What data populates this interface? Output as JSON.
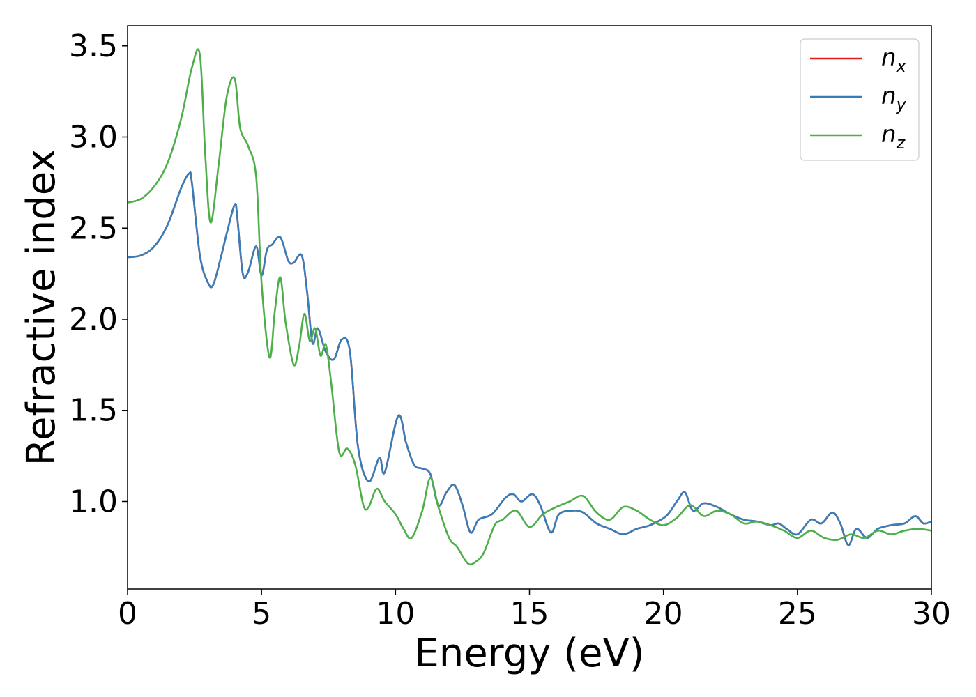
{
  "chart_data": {
    "type": "line",
    "xlabel": "Energy (eV)",
    "ylabel": "Refractive index",
    "xlim": [
      0,
      30
    ],
    "ylim": [
      0.52,
      3.61
    ],
    "xticks": [
      0,
      5,
      10,
      15,
      20,
      25,
      30
    ],
    "xtick_labels": [
      "0",
      "5",
      "10",
      "15",
      "20",
      "25",
      "30"
    ],
    "yticks": [
      1.0,
      1.5,
      2.0,
      2.5,
      3.0,
      3.5
    ],
    "ytick_labels": [
      "1.0",
      "1.5",
      "2.0",
      "2.5",
      "3.0",
      "3.5"
    ],
    "grid": false,
    "legend_position": "top-right",
    "series": [
      {
        "name": "n_x",
        "legend_main": "n",
        "legend_sub": "x",
        "color": "#e41a1c",
        "x": [
          0,
          0.5,
          1.0,
          1.5,
          2.0,
          2.3,
          2.4,
          2.7,
          3.0,
          3.2,
          3.5,
          3.7,
          4.0,
          4.1,
          4.3,
          4.5,
          4.8,
          5.0,
          5.2,
          5.4,
          5.7,
          6.0,
          6.2,
          6.5,
          6.7,
          6.9,
          7.1,
          7.4,
          7.7,
          8.0,
          8.3,
          8.6,
          9.0,
          9.4,
          9.6,
          10.1,
          10.4,
          10.7,
          11.0,
          11.3,
          11.6,
          11.9,
          12.2,
          12.5,
          12.8,
          13.1,
          13.6,
          14.1,
          14.4,
          14.7,
          15.1,
          15.4,
          15.8,
          16.1,
          16.6,
          17.0,
          17.5,
          18.0,
          18.5,
          19.0,
          19.5,
          20.1,
          20.5,
          20.8,
          21.1,
          21.5,
          22.0,
          22.5,
          23.0,
          23.5,
          24.0,
          24.3,
          24.6,
          25.0,
          25.5,
          25.9,
          26.3,
          26.6,
          26.9,
          27.2,
          27.6,
          28.0,
          28.5,
          29.0,
          29.4,
          29.7,
          30.0
        ],
        "y": [
          2.34,
          2.35,
          2.4,
          2.52,
          2.72,
          2.8,
          2.75,
          2.35,
          2.2,
          2.19,
          2.35,
          2.47,
          2.63,
          2.55,
          2.25,
          2.26,
          2.4,
          2.24,
          2.38,
          2.41,
          2.45,
          2.32,
          2.31,
          2.35,
          2.15,
          1.87,
          1.95,
          1.82,
          1.78,
          1.89,
          1.82,
          1.3,
          1.11,
          1.24,
          1.16,
          1.47,
          1.32,
          1.2,
          1.18,
          1.15,
          0.98,
          1.05,
          1.09,
          0.98,
          0.83,
          0.9,
          0.93,
          1.02,
          1.04,
          1.0,
          1.04,
          0.98,
          0.83,
          0.93,
          0.95,
          0.94,
          0.88,
          0.85,
          0.82,
          0.85,
          0.87,
          0.92,
          1.0,
          1.05,
          0.95,
          0.99,
          0.97,
          0.93,
          0.9,
          0.89,
          0.87,
          0.88,
          0.85,
          0.82,
          0.9,
          0.88,
          0.94,
          0.88,
          0.76,
          0.85,
          0.8,
          0.85,
          0.87,
          0.88,
          0.92,
          0.88,
          0.89
        ]
      },
      {
        "name": "n_y",
        "legend_main": "n",
        "legend_sub": "y",
        "color": "#377eb8",
        "x": [
          0,
          0.5,
          1.0,
          1.5,
          2.0,
          2.3,
          2.4,
          2.7,
          3.0,
          3.2,
          3.5,
          3.7,
          4.0,
          4.1,
          4.3,
          4.5,
          4.8,
          5.0,
          5.2,
          5.4,
          5.7,
          6.0,
          6.2,
          6.5,
          6.7,
          6.9,
          7.1,
          7.4,
          7.7,
          8.0,
          8.3,
          8.6,
          9.0,
          9.4,
          9.6,
          10.1,
          10.4,
          10.7,
          11.0,
          11.3,
          11.6,
          11.9,
          12.2,
          12.5,
          12.8,
          13.1,
          13.6,
          14.1,
          14.4,
          14.7,
          15.1,
          15.4,
          15.8,
          16.1,
          16.6,
          17.0,
          17.5,
          18.0,
          18.5,
          19.0,
          19.5,
          20.1,
          20.5,
          20.8,
          21.1,
          21.5,
          22.0,
          22.5,
          23.0,
          23.5,
          24.0,
          24.3,
          24.6,
          25.0,
          25.5,
          25.9,
          26.3,
          26.6,
          26.9,
          27.2,
          27.6,
          28.0,
          28.5,
          29.0,
          29.4,
          29.7,
          30.0
        ],
        "y": [
          2.34,
          2.35,
          2.4,
          2.52,
          2.72,
          2.8,
          2.75,
          2.35,
          2.2,
          2.19,
          2.35,
          2.47,
          2.63,
          2.55,
          2.25,
          2.26,
          2.4,
          2.24,
          2.38,
          2.41,
          2.45,
          2.32,
          2.31,
          2.35,
          2.15,
          1.87,
          1.95,
          1.82,
          1.78,
          1.89,
          1.82,
          1.3,
          1.11,
          1.24,
          1.16,
          1.47,
          1.32,
          1.2,
          1.18,
          1.15,
          0.98,
          1.05,
          1.09,
          0.98,
          0.83,
          0.9,
          0.93,
          1.02,
          1.04,
          1.0,
          1.04,
          0.98,
          0.83,
          0.93,
          0.95,
          0.94,
          0.88,
          0.85,
          0.82,
          0.85,
          0.87,
          0.92,
          1.0,
          1.05,
          0.95,
          0.99,
          0.97,
          0.93,
          0.9,
          0.89,
          0.87,
          0.88,
          0.85,
          0.82,
          0.9,
          0.88,
          0.94,
          0.88,
          0.76,
          0.85,
          0.8,
          0.85,
          0.87,
          0.88,
          0.92,
          0.88,
          0.89
        ]
      },
      {
        "name": "n_z",
        "legend_main": "n",
        "legend_sub": "z",
        "color": "#4daf4a",
        "x": [
          0,
          0.5,
          1.0,
          1.5,
          2.0,
          2.4,
          2.7,
          2.9,
          3.1,
          3.4,
          3.7,
          4.0,
          4.2,
          4.5,
          4.8,
          5.0,
          5.3,
          5.5,
          5.7,
          5.9,
          6.2,
          6.4,
          6.6,
          6.8,
          7.0,
          7.2,
          7.4,
          7.6,
          7.9,
          8.2,
          8.5,
          8.8,
          9.0,
          9.3,
          9.6,
          10.0,
          10.3,
          10.6,
          11.0,
          11.3,
          11.6,
          12.0,
          12.3,
          12.7,
          13.0,
          13.3,
          13.7,
          14.0,
          14.5,
          15.0,
          15.5,
          16.0,
          16.5,
          17.0,
          17.5,
          18.0,
          18.5,
          19.0,
          19.5,
          20.0,
          20.5,
          21.0,
          21.5,
          22.0,
          22.5,
          23.0,
          23.5,
          24.0,
          24.5,
          25.0,
          25.5,
          26.0,
          26.5,
          27.0,
          27.5,
          28.0,
          28.5,
          29.0,
          29.5,
          30.0
        ],
        "y": [
          2.64,
          2.66,
          2.73,
          2.86,
          3.1,
          3.38,
          3.45,
          2.9,
          2.53,
          2.85,
          3.22,
          3.32,
          3.05,
          2.95,
          2.78,
          2.2,
          1.79,
          2.05,
          2.23,
          1.98,
          1.75,
          1.85,
          2.03,
          1.88,
          1.95,
          1.8,
          1.86,
          1.65,
          1.27,
          1.29,
          1.2,
          0.98,
          0.97,
          1.07,
          1.0,
          0.93,
          0.85,
          0.8,
          0.95,
          1.13,
          0.97,
          0.8,
          0.75,
          0.66,
          0.67,
          0.72,
          0.87,
          0.9,
          0.95,
          0.86,
          0.93,
          0.97,
          1.0,
          1.03,
          0.94,
          0.9,
          0.97,
          0.95,
          0.9,
          0.87,
          0.91,
          0.98,
          0.92,
          0.95,
          0.93,
          0.88,
          0.89,
          0.87,
          0.84,
          0.8,
          0.84,
          0.8,
          0.79,
          0.82,
          0.8,
          0.84,
          0.82,
          0.84,
          0.85,
          0.84
        ]
      }
    ]
  }
}
